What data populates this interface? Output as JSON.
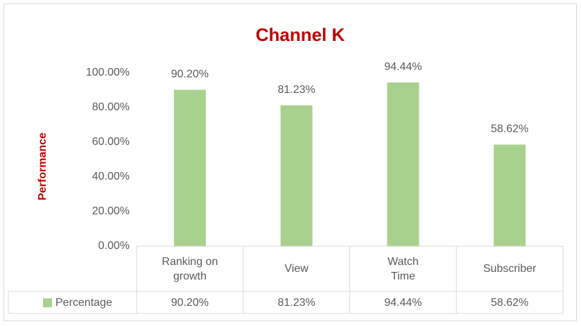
{
  "chart_data": {
    "type": "bar",
    "title": "Channel K",
    "y_label": "Performance",
    "categories": [
      "Ranking on growth",
      "View",
      "Watch Time",
      "Subscriber"
    ],
    "series": [
      {
        "name": "Percentage",
        "color": "#a9d18e",
        "values": [
          90.2,
          81.23,
          94.44,
          58.62
        ],
        "value_labels": [
          "90.20%",
          "81.23%",
          "94.44%",
          "58.62%"
        ]
      }
    ],
    "ylim": [
      0,
      100
    ],
    "yticks": [
      {
        "value": 0,
        "label": "0.00%"
      },
      {
        "value": 20,
        "label": "20.00%"
      },
      {
        "value": 40,
        "label": "40.00%"
      },
      {
        "value": 60,
        "label": "60.00%"
      },
      {
        "value": 80,
        "label": "80.00%"
      },
      {
        "value": 100,
        "label": "100.00%"
      }
    ],
    "grid": false,
    "data_table": true
  }
}
